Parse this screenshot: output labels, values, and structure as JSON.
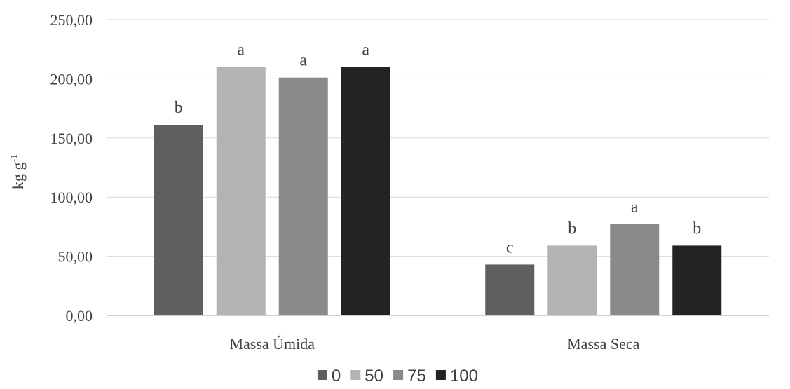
{
  "chart_data": {
    "type": "bar",
    "categories": [
      "Massa Úmida",
      "Massa Seca"
    ],
    "series": [
      {
        "name": "0",
        "color": "#5f5f5f",
        "values": [
          161,
          43
        ],
        "labels": [
          "b",
          "c"
        ]
      },
      {
        "name": "50",
        "color": "#b3b3b3",
        "values": [
          210,
          59
        ],
        "labels": [
          "a",
          "b"
        ]
      },
      {
        "name": "75",
        "color": "#8a8a8a",
        "values": [
          201,
          77
        ],
        "labels": [
          "a",
          "a"
        ]
      },
      {
        "name": "100",
        "color": "#232323",
        "values": [
          210,
          59
        ],
        "labels": [
          "a",
          "b"
        ]
      }
    ],
    "ylabel": "kg g",
    "ylabel_superscript": "-1",
    "ylim": [
      0,
      250
    ],
    "yticks": [
      "0,00",
      "50,00",
      "100,00",
      "150,00",
      "200,00",
      "250,00"
    ],
    "grid": true,
    "legend_position": "bottom"
  }
}
